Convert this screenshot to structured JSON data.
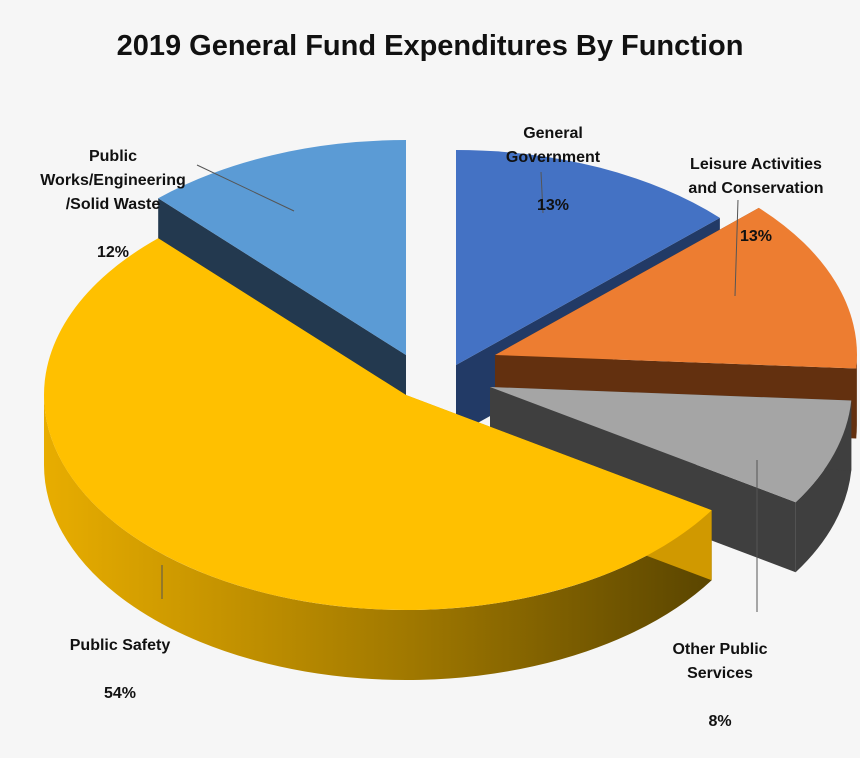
{
  "chart_data": {
    "type": "pie",
    "title": "2019 General Fund Expenditures By Function",
    "slices": [
      {
        "name": "General Government",
        "label": "General\nGovernment",
        "value": 13,
        "value_label": "13%",
        "color": "#4472c4",
        "side_color": "#223a66"
      },
      {
        "name": "Leisure Activities and Conservation",
        "label": "Leisure Activities\nand Conservation",
        "value": 13,
        "value_label": "13%",
        "color": "#ed7d31",
        "side_color": "#63300f"
      },
      {
        "name": "Other Public Services",
        "label": "Other Public\nServices",
        "value": 8,
        "value_label": "8%",
        "color": "#a5a5a5",
        "side_color": "#3f3f3f"
      },
      {
        "name": "Public Safety",
        "label": "Public Safety",
        "value": 54,
        "value_label": "54%",
        "color": "#ffc000",
        "side_color": "#d09900"
      },
      {
        "name": "Public Works/Engineering/Solid Waste",
        "label": "Public\nWorks/Engineering\n/Solid Waste",
        "value": 12,
        "value_label": "12%",
        "color": "#5b9bd5",
        "side_color": "#23394f"
      }
    ]
  }
}
